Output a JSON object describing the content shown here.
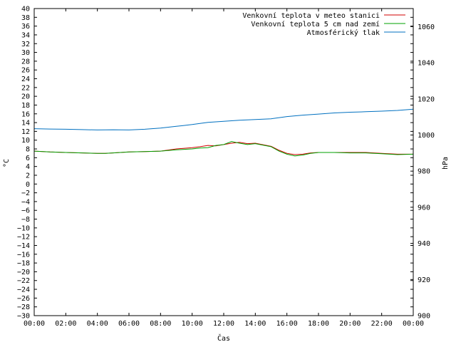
{
  "chart_data": {
    "type": "line",
    "xlabel": "Čas",
    "ylabel": "°C",
    "y2label": "hPa",
    "x_ticks": [
      "00:00",
      "02:00",
      "04:00",
      "06:00",
      "08:00",
      "10:00",
      "12:00",
      "14:00",
      "16:00",
      "18:00",
      "20:00",
      "22:00",
      "00:00"
    ],
    "x_range_hours": [
      0,
      24
    ],
    "ylim": [
      -30,
      40
    ],
    "y_tick_step": 2,
    "y2lim": [
      900,
      1070
    ],
    "y2_tick_step": 20,
    "grid": false,
    "legend_position": "top-right",
    "series": [
      {
        "name": "Venkovní teplota v meteo stanici",
        "axis": "y",
        "color": "#d00000",
        "points": [
          [
            0,
            7.5
          ],
          [
            1,
            7.3
          ],
          [
            2,
            7.2
          ],
          [
            3,
            7.1
          ],
          [
            4,
            7.0
          ],
          [
            4.5,
            7.0
          ],
          [
            5,
            7.1
          ],
          [
            6,
            7.3
          ],
          [
            7,
            7.4
          ],
          [
            8,
            7.5
          ],
          [
            9,
            8.0
          ],
          [
            10,
            8.3
          ],
          [
            10.5,
            8.5
          ],
          [
            11,
            8.8
          ],
          [
            11.5,
            8.7
          ],
          [
            12,
            9.0
          ],
          [
            12.5,
            9.3
          ],
          [
            13,
            9.5
          ],
          [
            13.5,
            9.2
          ],
          [
            14,
            9.3
          ],
          [
            15,
            8.6
          ],
          [
            15.5,
            7.7
          ],
          [
            16,
            7.0
          ],
          [
            16.5,
            6.7
          ],
          [
            17,
            6.8
          ],
          [
            17.5,
            7.1
          ],
          [
            18,
            7.2
          ],
          [
            19,
            7.2
          ],
          [
            20,
            7.2
          ],
          [
            21,
            7.2
          ],
          [
            22,
            7.0
          ],
          [
            23,
            6.8
          ],
          [
            24,
            6.8
          ]
        ]
      },
      {
        "name": "Venkovní teplota 5 cm nad zemí",
        "axis": "y",
        "color": "#00a000",
        "points": [
          [
            0,
            7.5
          ],
          [
            1,
            7.3
          ],
          [
            2,
            7.2
          ],
          [
            3,
            7.1
          ],
          [
            4,
            7.0
          ],
          [
            4.5,
            7.0
          ],
          [
            5,
            7.1
          ],
          [
            6,
            7.3
          ],
          [
            7,
            7.4
          ],
          [
            8,
            7.5
          ],
          [
            9,
            7.8
          ],
          [
            10,
            8.0
          ],
          [
            10.5,
            8.2
          ],
          [
            11,
            8.3
          ],
          [
            11.5,
            8.8
          ],
          [
            12,
            9.0
          ],
          [
            12.5,
            9.7
          ],
          [
            13,
            9.3
          ],
          [
            13.5,
            9.0
          ],
          [
            14,
            9.2
          ],
          [
            15,
            8.5
          ],
          [
            15.5,
            7.5
          ],
          [
            16,
            6.8
          ],
          [
            16.5,
            6.4
          ],
          [
            17,
            6.6
          ],
          [
            17.5,
            7.0
          ],
          [
            18,
            7.2
          ],
          [
            19,
            7.2
          ],
          [
            20,
            7.1
          ],
          [
            21,
            7.1
          ],
          [
            22,
            6.9
          ],
          [
            23,
            6.7
          ],
          [
            24,
            6.8
          ]
        ]
      },
      {
        "name": "Atmosférický tlak",
        "axis": "y2",
        "color": "#0070c0",
        "points": [
          [
            0,
            1003.5
          ],
          [
            1,
            1003.3
          ],
          [
            2,
            1003.2
          ],
          [
            3,
            1003.0
          ],
          [
            4,
            1002.8
          ],
          [
            5,
            1002.9
          ],
          [
            6,
            1002.8
          ],
          [
            7,
            1003.2
          ],
          [
            8,
            1003.8
          ],
          [
            9,
            1004.8
          ],
          [
            10,
            1005.8
          ],
          [
            11,
            1007.0
          ],
          [
            12,
            1007.6
          ],
          [
            13,
            1008.2
          ],
          [
            14,
            1008.6
          ],
          [
            15,
            1009.0
          ],
          [
            16,
            1010.2
          ],
          [
            17,
            1011.0
          ],
          [
            18,
            1011.6
          ],
          [
            19,
            1012.2
          ],
          [
            20,
            1012.6
          ],
          [
            21,
            1012.9
          ],
          [
            22,
            1013.2
          ],
          [
            23,
            1013.6
          ],
          [
            24,
            1014.3
          ]
        ]
      }
    ]
  }
}
